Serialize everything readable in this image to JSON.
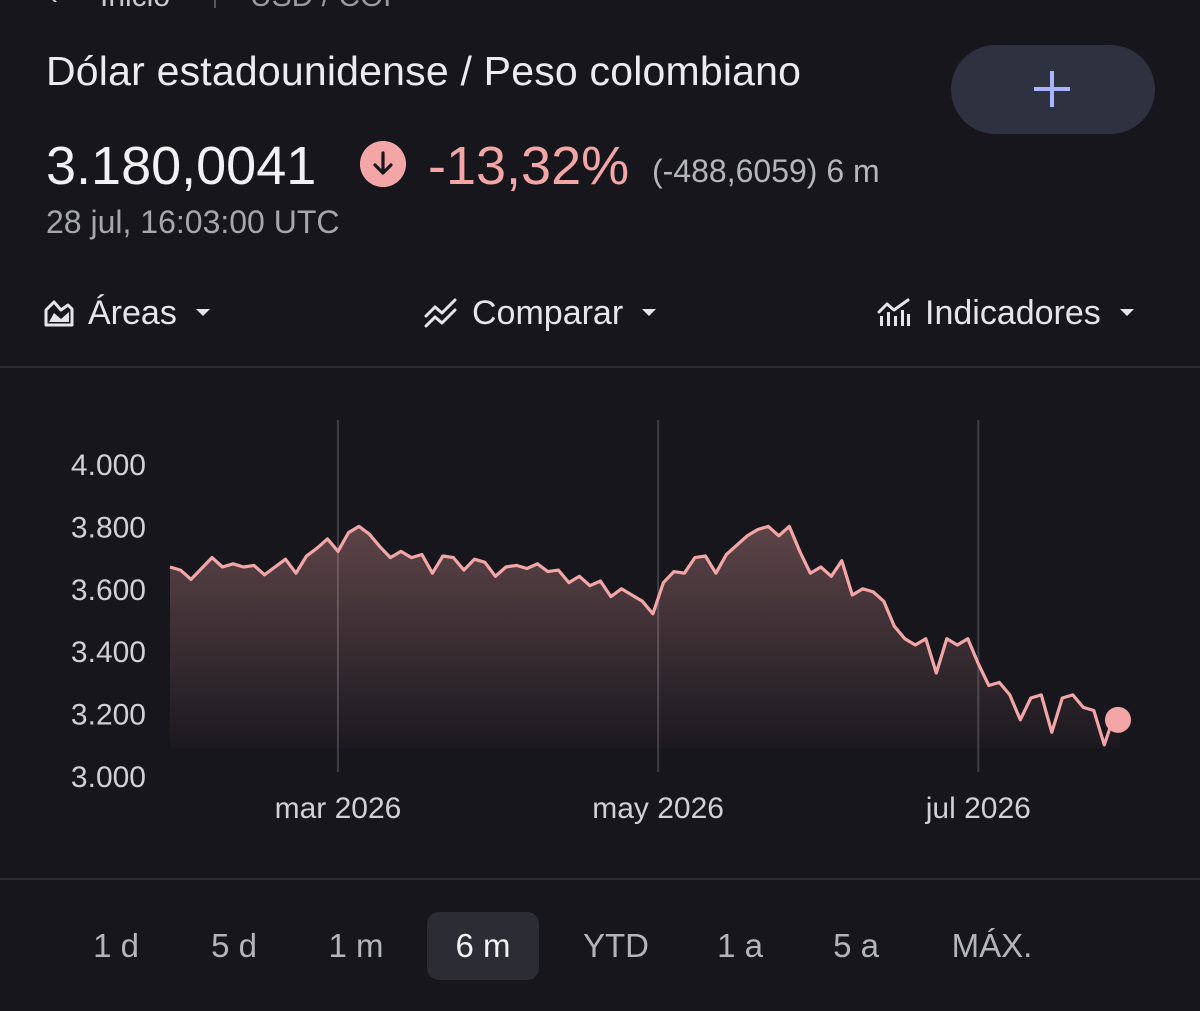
{
  "nav": {
    "back_label": "Inicio",
    "pair_label": "USD / COP"
  },
  "header": {
    "title": "Dólar estadounidense / Peso colombiano",
    "price": "3.180,0041",
    "change_pct": "-13,32%",
    "change_abs": "(-488,6059) 6 m",
    "timestamp": "28 jul, 16:03:00 UTC"
  },
  "toolbar": {
    "areas_label": "Áreas",
    "compare_label": "Comparar",
    "indicators_label": "Indicadores"
  },
  "colors": {
    "accent_red": "#f4a6a6",
    "background": "#16161c",
    "button_bg": "#2e3140",
    "plus": "#a8b4ff"
  },
  "icons": [
    "back-arrow-icon",
    "plus-icon",
    "arrow-down-icon",
    "area-chart-icon",
    "compare-icon",
    "indicators-icon",
    "caret-down-icon"
  ],
  "chart_data": {
    "type": "area",
    "y_ticks": [
      "4.000",
      "3.800",
      "3.600",
      "3.400",
      "3.200",
      "3.000"
    ],
    "ylim": [
      3000,
      4000
    ],
    "x_ticks": [
      "mar 2026",
      "may 2026",
      "jul 2026"
    ],
    "x_range": [
      "2026-01-28",
      "2026-07-28"
    ],
    "series": [
      {
        "points": [
          [
            "2026-01-28",
            3670
          ],
          [
            "2026-01-30",
            3660
          ],
          [
            "2026-02-01",
            3630
          ],
          [
            "2026-02-03",
            3665
          ],
          [
            "2026-02-05",
            3700
          ],
          [
            "2026-02-07",
            3670
          ],
          [
            "2026-02-09",
            3680
          ],
          [
            "2026-02-11",
            3670
          ],
          [
            "2026-02-13",
            3675
          ],
          [
            "2026-02-15",
            3645
          ],
          [
            "2026-02-17",
            3670
          ],
          [
            "2026-02-19",
            3695
          ],
          [
            "2026-02-21",
            3650
          ],
          [
            "2026-02-23",
            3705
          ],
          [
            "2026-02-25",
            3730
          ],
          [
            "2026-02-27",
            3760
          ],
          [
            "2026-03-01",
            3720
          ],
          [
            "2026-03-03",
            3780
          ],
          [
            "2026-03-05",
            3800
          ],
          [
            "2026-03-07",
            3775
          ],
          [
            "2026-03-09",
            3735
          ],
          [
            "2026-03-11",
            3700
          ],
          [
            "2026-03-13",
            3720
          ],
          [
            "2026-03-15",
            3700
          ],
          [
            "2026-03-17",
            3710
          ],
          [
            "2026-03-19",
            3650
          ],
          [
            "2026-03-21",
            3705
          ],
          [
            "2026-03-23",
            3700
          ],
          [
            "2026-03-25",
            3660
          ],
          [
            "2026-03-27",
            3695
          ],
          [
            "2026-03-29",
            3685
          ],
          [
            "2026-03-31",
            3640
          ],
          [
            "2026-04-02",
            3670
          ],
          [
            "2026-04-04",
            3675
          ],
          [
            "2026-04-06",
            3665
          ],
          [
            "2026-04-08",
            3680
          ],
          [
            "2026-04-10",
            3655
          ],
          [
            "2026-04-12",
            3660
          ],
          [
            "2026-04-14",
            3620
          ],
          [
            "2026-04-16",
            3640
          ],
          [
            "2026-04-18",
            3610
          ],
          [
            "2026-04-20",
            3625
          ],
          [
            "2026-04-22",
            3575
          ],
          [
            "2026-04-24",
            3600
          ],
          [
            "2026-04-26",
            3580
          ],
          [
            "2026-04-28",
            3560
          ],
          [
            "2026-04-30",
            3520
          ],
          [
            "2026-05-02",
            3620
          ],
          [
            "2026-05-04",
            3655
          ],
          [
            "2026-05-06",
            3650
          ],
          [
            "2026-05-08",
            3700
          ],
          [
            "2026-05-10",
            3705
          ],
          [
            "2026-05-12",
            3650
          ],
          [
            "2026-05-14",
            3710
          ],
          [
            "2026-05-16",
            3740
          ],
          [
            "2026-05-18",
            3770
          ],
          [
            "2026-05-20",
            3790
          ],
          [
            "2026-05-22",
            3800
          ],
          [
            "2026-05-24",
            3770
          ],
          [
            "2026-05-26",
            3800
          ],
          [
            "2026-05-28",
            3720
          ],
          [
            "2026-05-30",
            3650
          ],
          [
            "2026-06-01",
            3670
          ],
          [
            "2026-06-03",
            3640
          ],
          [
            "2026-06-05",
            3690
          ],
          [
            "2026-06-07",
            3580
          ],
          [
            "2026-06-09",
            3600
          ],
          [
            "2026-06-11",
            3590
          ],
          [
            "2026-06-13",
            3560
          ],
          [
            "2026-06-15",
            3480
          ],
          [
            "2026-06-17",
            3440
          ],
          [
            "2026-06-19",
            3420
          ],
          [
            "2026-06-21",
            3440
          ],
          [
            "2026-06-23",
            3330
          ],
          [
            "2026-06-25",
            3440
          ],
          [
            "2026-06-27",
            3420
          ],
          [
            "2026-06-29",
            3440
          ],
          [
            "2026-07-01",
            3360
          ],
          [
            "2026-07-03",
            3290
          ],
          [
            "2026-07-05",
            3300
          ],
          [
            "2026-07-07",
            3260
          ],
          [
            "2026-07-09",
            3180
          ],
          [
            "2026-07-11",
            3250
          ],
          [
            "2026-07-13",
            3260
          ],
          [
            "2026-07-15",
            3140
          ],
          [
            "2026-07-17",
            3250
          ],
          [
            "2026-07-19",
            3260
          ],
          [
            "2026-07-21",
            3220
          ],
          [
            "2026-07-23",
            3210
          ],
          [
            "2026-07-25",
            3100
          ],
          [
            "2026-07-27",
            3200
          ],
          [
            "2026-07-28",
            3180
          ]
        ]
      }
    ],
    "grid": "vertical lines at x ticks",
    "line_color": "#f4a6a6"
  },
  "ranges": [
    {
      "label": "1 d",
      "active": false
    },
    {
      "label": "5 d",
      "active": false
    },
    {
      "label": "1 m",
      "active": false
    },
    {
      "label": "6 m",
      "active": true
    },
    {
      "label": "YTD",
      "active": false
    },
    {
      "label": "1 a",
      "active": false
    },
    {
      "label": "5 a",
      "active": false
    },
    {
      "label": "MÁX.",
      "active": false
    }
  ]
}
